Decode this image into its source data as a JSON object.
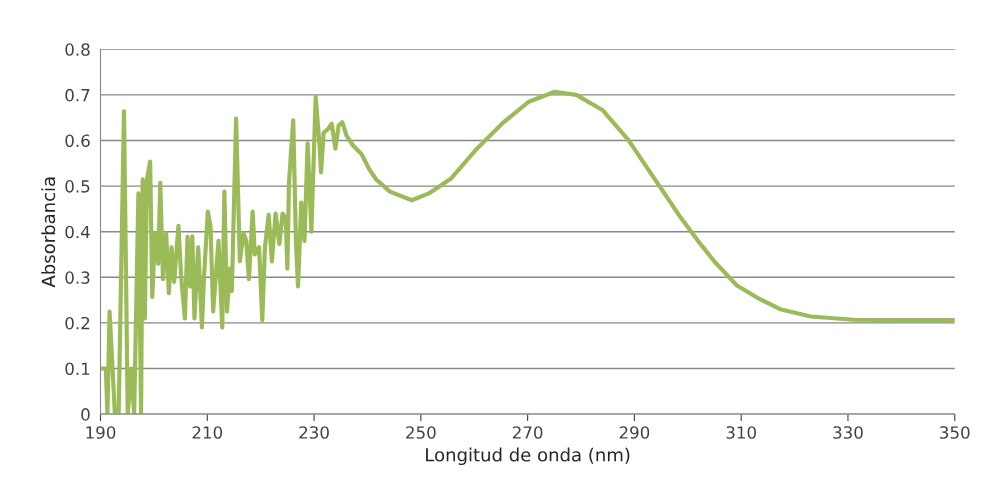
{
  "chart_data": {
    "type": "line",
    "xlabel": "Longitud de onda (nm)",
    "ylabel": "Absorbancia",
    "series": [
      {
        "color": "#9bbb59",
        "x": [
          190,
          191,
          191.3,
          191.7,
          192.7,
          193.4,
          194.4,
          195.1,
          195.8,
          196.3,
          197.1,
          197.6,
          197.9,
          198.3,
          198.7,
          199.3,
          199.7,
          200.2,
          200.8,
          201.2,
          201.7,
          202.3,
          202.8,
          203.3,
          203.8,
          204.6,
          205.1,
          205.8,
          206.3,
          206.8,
          207.2,
          207.6,
          208.3,
          209,
          209.4,
          210.1,
          210.6,
          211.1,
          211.7,
          212.1,
          212.8,
          213.2,
          213.7,
          214.2,
          214.6,
          215.4,
          216.1,
          216.8,
          217.3,
          217.8,
          218.5,
          218.9,
          219.7,
          220.3,
          220.8,
          221.5,
          222.1,
          222.8,
          223.5,
          224.1,
          224.7,
          225,
          225.3,
          226.1,
          226.6,
          227,
          227.6,
          228.2,
          228.8,
          229.5,
          230.3,
          231,
          231.3,
          231.8,
          232.6,
          233.3,
          234,
          234.6,
          235.3,
          236.1,
          237.3,
          238.9,
          240.3,
          241.6,
          244.2,
          248.3,
          251.5,
          255.6,
          260.5,
          265.3,
          270.2,
          275.1,
          279.1,
          284,
          288.9,
          292.1,
          295.4,
          298.6,
          301.9,
          305.1,
          309.2,
          313.2,
          317.3,
          323,
          331.1,
          339.2,
          350
        ],
        "values": [
          0.1,
          0.1,
          0,
          0.225,
          0,
          0,
          0.664,
          0,
          0.1,
          0,
          0.484,
          0,
          0.515,
          0.21,
          0.515,
          0.554,
          0.257,
          0.397,
          0.33,
          0.507,
          0.296,
          0.397,
          0.265,
          0.366,
          0.29,
          0.413,
          0.303,
          0.21,
          0.389,
          0.28,
          0.39,
          0.21,
          0.366,
          0.19,
          0.303,
          0.444,
          0.413,
          0.225,
          0.319,
          0.38,
          0.19,
          0.488,
          0.225,
          0.319,
          0.27,
          0.648,
          0.335,
          0.397,
          0.38,
          0.296,
          0.444,
          0.35,
          0.366,
          0.206,
          0.366,
          0.437,
          0.335,
          0.44,
          0.373,
          0.44,
          0.43,
          0.319,
          0.507,
          0.644,
          0.38,
          0.28,
          0.464,
          0.38,
          0.594,
          0.4,
          0.695,
          0.594,
          0.53,
          0.617,
          0.625,
          0.637,
          0.582,
          0.633,
          0.64,
          0.61,
          0.589,
          0.57,
          0.538,
          0.515,
          0.488,
          0.469,
          0.484,
          0.516,
          0.582,
          0.638,
          0.685,
          0.707,
          0.7,
          0.667,
          0.601,
          0.545,
          0.488,
          0.432,
          0.38,
          0.333,
          0.282,
          0.254,
          0.23,
          0.214,
          0.207,
          0.206,
          0.206
        ]
      }
    ],
    "xlim": [
      190,
      350
    ],
    "xticks": [
      190,
      210,
      230,
      250,
      270,
      290,
      310,
      330,
      350
    ],
    "ylim": [
      0,
      0.8
    ],
    "yticks": [
      0,
      0.1,
      0.2,
      0.3,
      0.4,
      0.5,
      0.6,
      0.7,
      0.8
    ],
    "grid": "y"
  }
}
